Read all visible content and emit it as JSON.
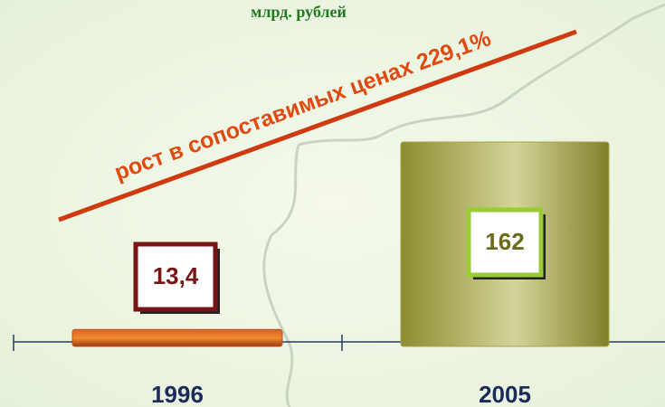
{
  "chart_data": {
    "type": "bar",
    "subtitle": "млрд. рублей",
    "annotation": "рост в сопоставимых ценах 229,1%",
    "categories": [
      "1996",
      "2005"
    ],
    "values": [
      13.4,
      162
    ],
    "value_labels": [
      "13,4",
      "162"
    ],
    "colors": [
      "#c4501c",
      "#a4a448"
    ]
  }
}
